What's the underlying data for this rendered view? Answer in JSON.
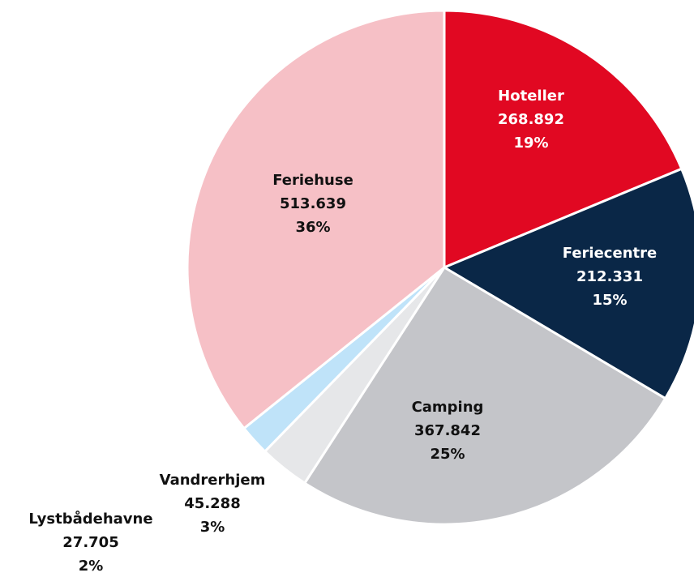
{
  "chart_data": {
    "type": "pie",
    "categories": [
      "Hoteller",
      "Feriecentre",
      "Camping",
      "Vandrerhjem",
      "Lystbådehavne",
      "Feriehuse"
    ],
    "values": [
      268892,
      212331,
      367842,
      45288,
      27705,
      513639
    ],
    "value_labels": [
      "268.892",
      "212.331",
      "367.842",
      "45.288",
      "27.705",
      "513.639"
    ],
    "percentages": [
      19,
      15,
      25,
      3,
      2,
      36
    ],
    "percentage_labels": [
      "19%",
      "15%",
      "25%",
      "3%",
      "2%",
      "36%"
    ],
    "colors": [
      "#e10822",
      "#0a2747",
      "#c4c5c9",
      "#e6e7e9",
      "#bfe3f9",
      "#f6c0c6"
    ]
  }
}
